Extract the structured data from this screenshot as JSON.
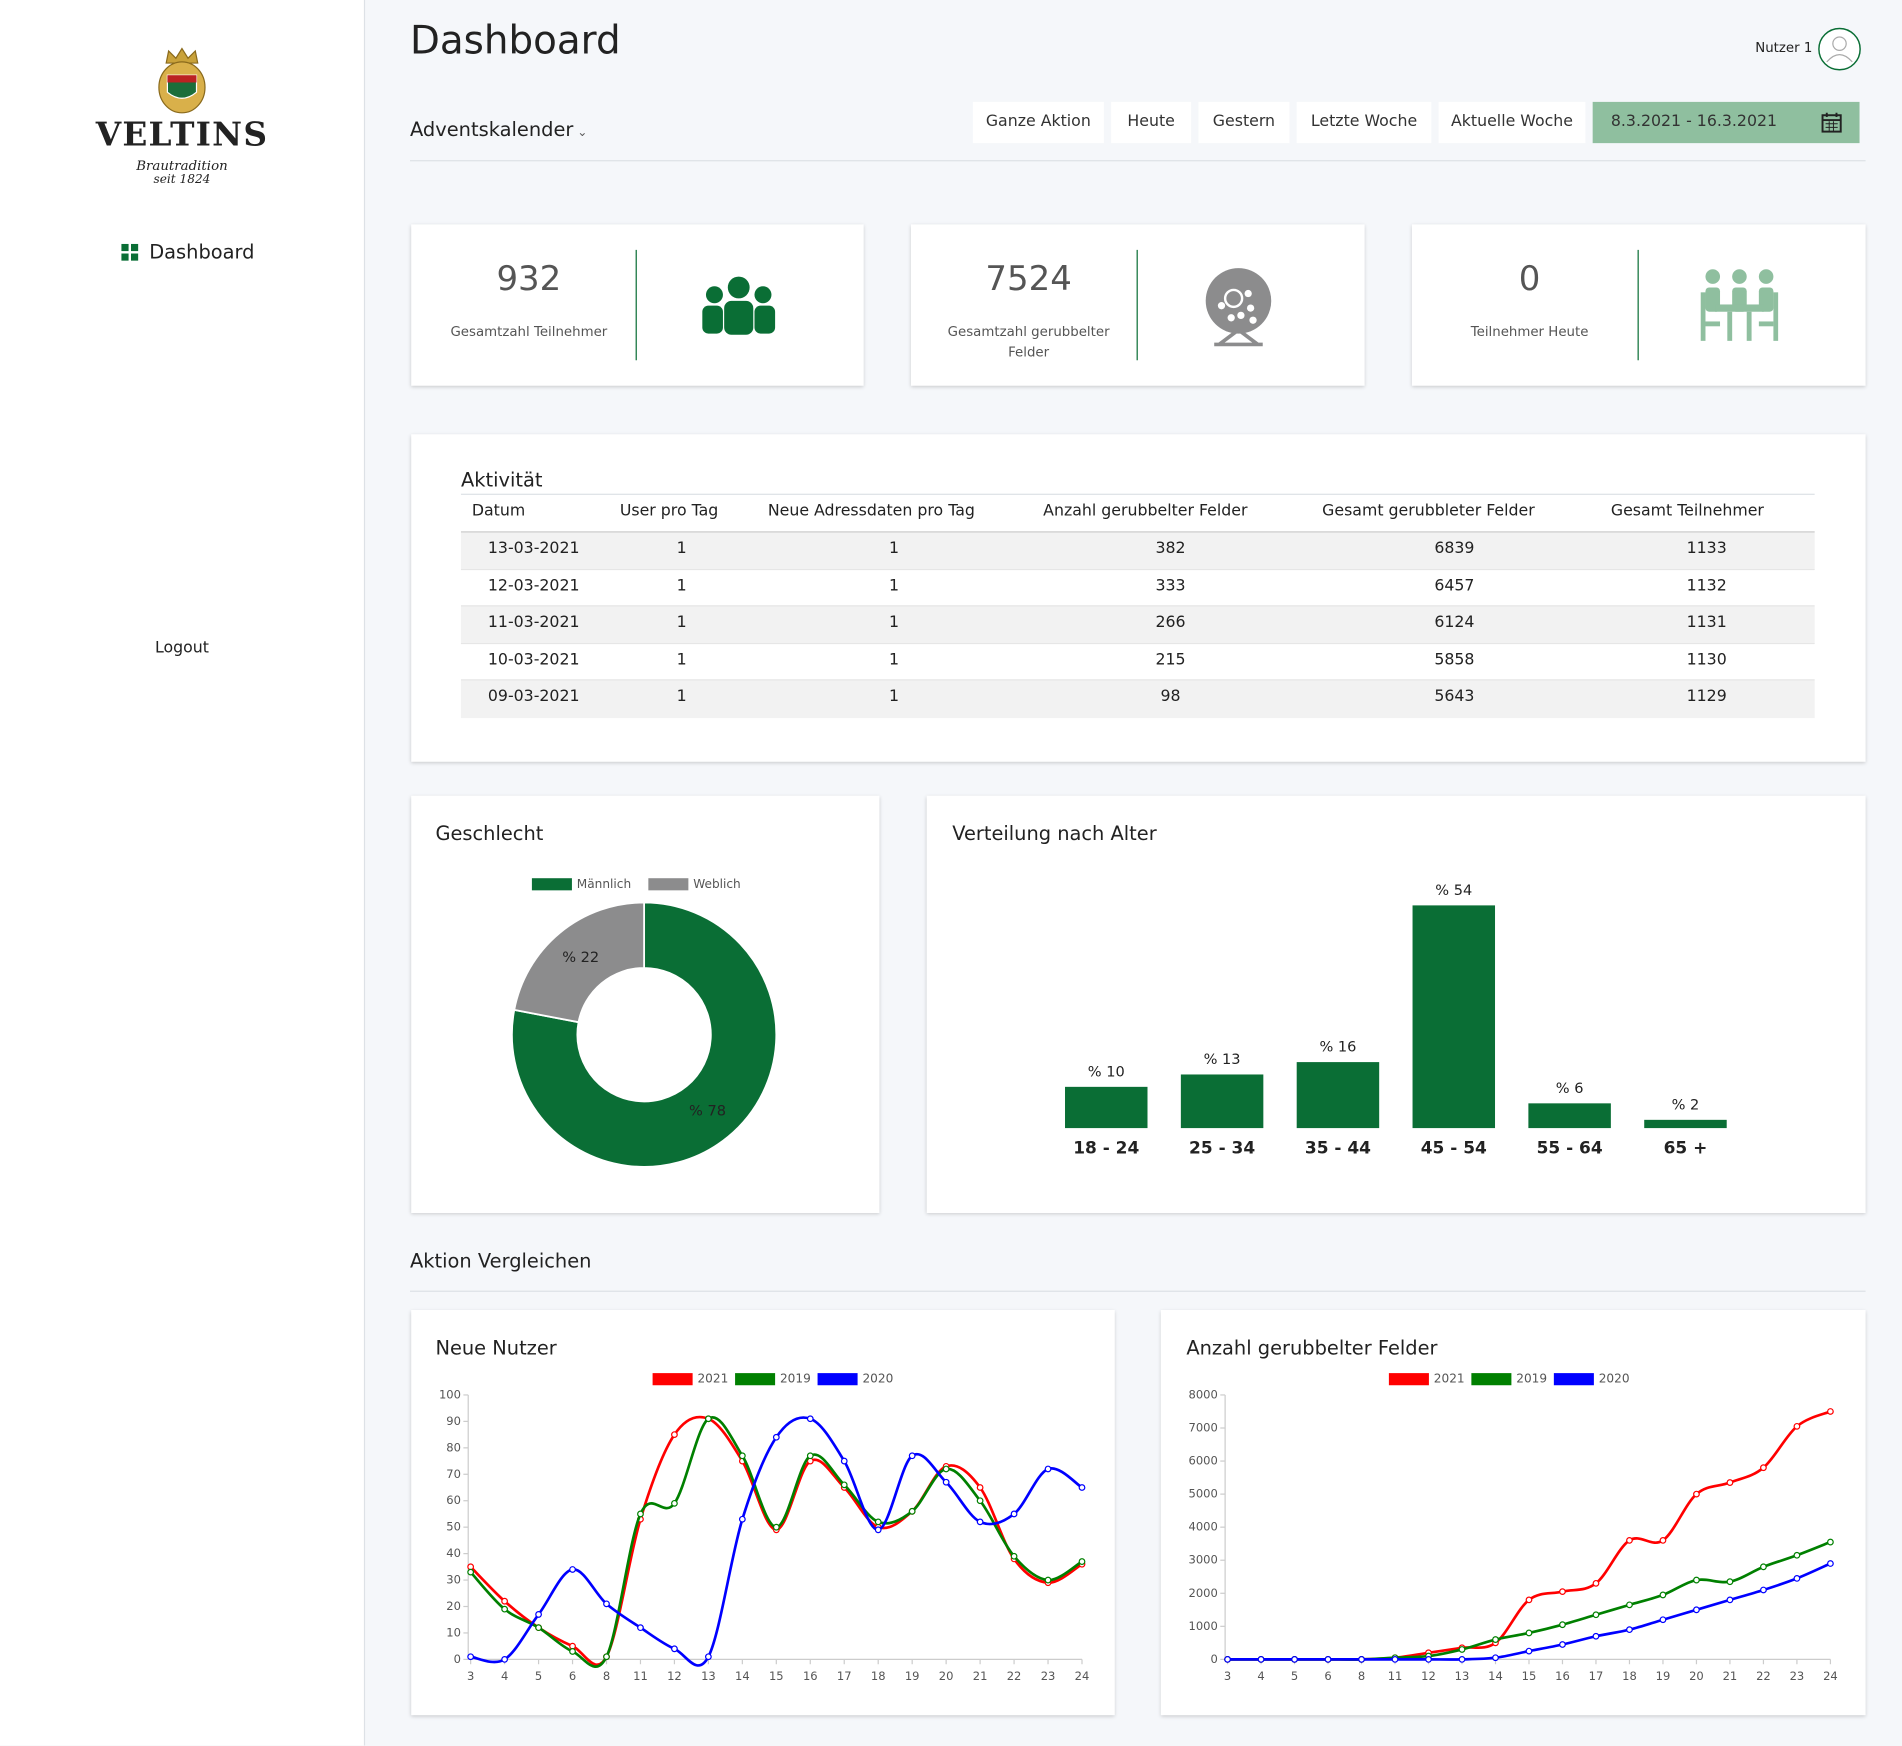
{
  "sidebar": {
    "logo": {
      "brand": "VELTINS",
      "tagline": "Brautradition",
      "since": "seit 1824"
    },
    "nav": [
      "Dashboard"
    ],
    "logout": "Logout"
  },
  "header": {
    "title": "Dashboard",
    "user": "Nutzer 1",
    "campaign": "Adventskalender"
  },
  "filters": {
    "buttons": [
      "Ganze Aktion",
      "Heute",
      "Gestern",
      "Letzte Woche",
      "Aktuelle Woche"
    ],
    "date_range": "8.3.2021 - 16.3.2021"
  },
  "stats": [
    {
      "value": 932,
      "label": "Gesamtzahl Teilnehmer"
    },
    {
      "value": 7524,
      "label": "Gesamtzahl gerubbelter Felder"
    },
    {
      "value": 0,
      "label": "Teilnehmer Heute"
    }
  ],
  "table": {
    "title": "Aktivität",
    "columns": [
      "Datum",
      "User pro Tag",
      "Neue Adressdaten pro Tag",
      "Anzahl gerubbelter Felder",
      "Gesamt gerubbleter Felder",
      "Gesamt Teilnehmer"
    ],
    "rows": [
      [
        "13-03-2021",
        1,
        1,
        382,
        6839,
        1133
      ],
      [
        "12-03-2021",
        1,
        1,
        333,
        6457,
        1132
      ],
      [
        "11-03-2021",
        1,
        1,
        266,
        6124,
        1131
      ],
      [
        "10-03-2021",
        1,
        1,
        215,
        5858,
        1130
      ],
      [
        "09-03-2021",
        1,
        1,
        98,
        5643,
        1129
      ]
    ]
  },
  "section_title": "Aktion Vergleichen",
  "chart_data": [
    {
      "type": "doughnut",
      "title": "Geschlecht",
      "categories": [
        "Männlich",
        "Weblich"
      ],
      "values": [
        78,
        22
      ],
      "value_labels": [
        "% 78",
        "% 22"
      ],
      "colors": [
        "#0a6e35",
        "#8c8c8d"
      ],
      "legend": "top"
    },
    {
      "type": "bar",
      "title": "Verteilung nach Alter",
      "categories": [
        "18 - 24",
        "25 - 34",
        "35 - 44",
        "45 - 54",
        "55 - 64",
        "65 +"
      ],
      "values": [
        10,
        13,
        16,
        54,
        6,
        2
      ],
      "value_labels": [
        "% 10",
        "% 13",
        "% 16",
        "% 54",
        "% 6",
        "% 2"
      ],
      "color": "#0a6e35"
    },
    {
      "type": "line",
      "title": "Neue Nutzer",
      "categories": [
        "3",
        "4",
        "5",
        "6",
        "8",
        "11",
        "12",
        "13",
        "14",
        "15",
        "16",
        "17",
        "18",
        "19",
        "20",
        "21",
        "22",
        "23",
        "24"
      ],
      "ylim": [
        0,
        100
      ],
      "yticks": [
        0,
        10,
        20,
        30,
        40,
        50,
        60,
        70,
        80,
        90,
        100
      ],
      "legend": "top",
      "series": [
        {
          "name": "2021",
          "color": "#ff0000",
          "values": [
            35,
            22,
            12,
            5,
            1,
            53,
            85,
            91,
            75,
            49,
            75,
            65,
            50,
            56,
            73,
            65,
            38,
            29,
            36
          ]
        },
        {
          "name": "2019",
          "color": "#008000",
          "values": [
            33,
            19,
            12,
            3,
            1,
            55,
            59,
            91,
            77,
            50,
            77,
            66,
            52,
            56,
            72,
            60,
            39,
            30,
            37
          ]
        },
        {
          "name": "2020",
          "color": "#0000ff",
          "values": [
            1,
            0,
            17,
            34,
            21,
            12,
            4,
            1,
            53,
            84,
            91,
            75,
            49,
            77,
            67,
            52,
            55,
            72,
            65
          ]
        }
      ]
    },
    {
      "type": "line",
      "title": "Anzahl gerubbelter Felder",
      "categories": [
        "3",
        "4",
        "5",
        "6",
        "8",
        "11",
        "12",
        "13",
        "14",
        "15",
        "16",
        "17",
        "18",
        "19",
        "20",
        "21",
        "22",
        "23",
        "24"
      ],
      "ylim": [
        0,
        8000
      ],
      "yticks": [
        0,
        1000,
        2000,
        3000,
        4000,
        5000,
        6000,
        7000,
        8000
      ],
      "legend": "top",
      "series": [
        {
          "name": "2021",
          "color": "#ff0000",
          "values": [
            0,
            0,
            0,
            0,
            0,
            50,
            200,
            350,
            500,
            1800,
            2050,
            2300,
            3600,
            3600,
            5000,
            5350,
            5800,
            7050,
            7500
          ]
        },
        {
          "name": "2019",
          "color": "#008000",
          "values": [
            0,
            0,
            0,
            0,
            0,
            50,
            100,
            300,
            600,
            800,
            1050,
            1350,
            1650,
            1950,
            2400,
            2350,
            2800,
            3150,
            3550
          ]
        },
        {
          "name": "2020",
          "color": "#0000ff",
          "values": [
            0,
            0,
            0,
            0,
            0,
            0,
            0,
            0,
            50,
            250,
            450,
            700,
            900,
            1200,
            1500,
            1800,
            2100,
            2450,
            2900
          ]
        }
      ]
    }
  ]
}
